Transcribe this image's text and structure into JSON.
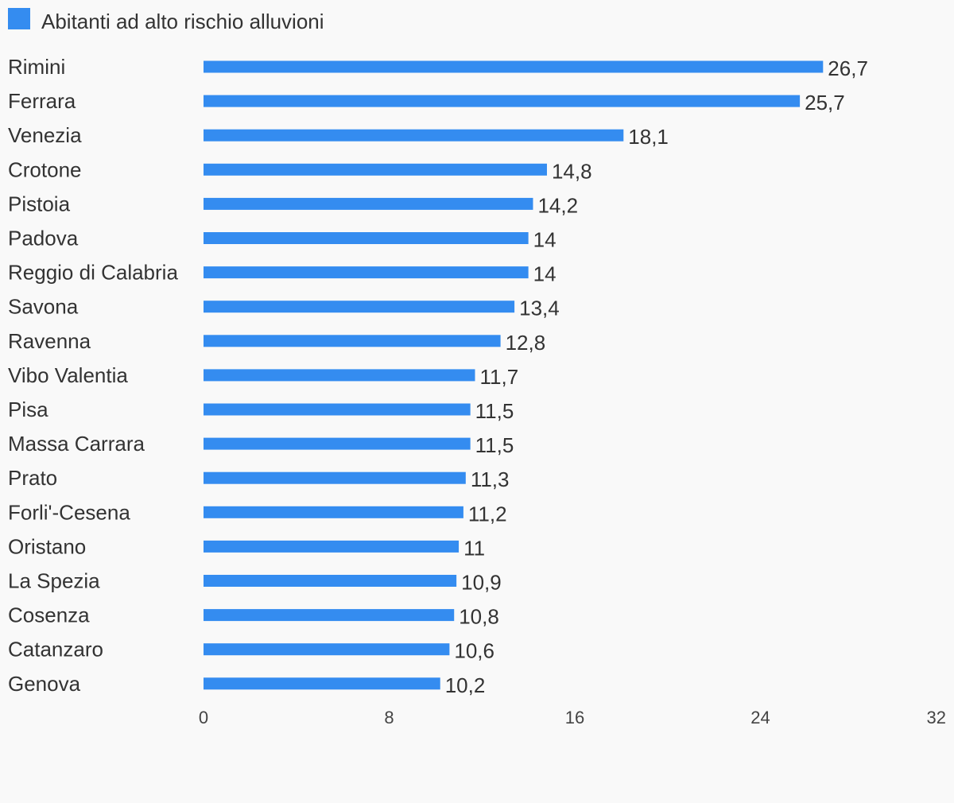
{
  "chart_data": {
    "type": "bar",
    "orientation": "horizontal",
    "categories": [
      "Rimini",
      "Ferrara",
      "Venezia",
      "Crotone",
      "Pistoia",
      "Padova",
      "Reggio di Calabria",
      "Savona",
      "Ravenna",
      "Vibo Valentia",
      "Pisa",
      "Massa Carrara",
      "Prato",
      "Forli'-Cesena",
      "Oristano",
      "La Spezia",
      "Cosenza",
      "Catanzaro",
      "Genova"
    ],
    "series": [
      {
        "name": "Abitanti ad alto rischio alluvioni",
        "color": "#348cf0",
        "values": [
          26.7,
          25.7,
          18.1,
          14.8,
          14.2,
          14,
          14,
          13.4,
          12.8,
          11.7,
          11.5,
          11.5,
          11.3,
          11.2,
          11,
          10.9,
          10.8,
          10.6,
          10.2
        ],
        "value_labels": [
          "26,7",
          "25,7",
          "18,1",
          "14,8",
          "14,2",
          "14",
          "14",
          "13,4",
          "12,8",
          "11,7",
          "11,5",
          "11,5",
          "11,3",
          "11,2",
          "11",
          "10,9",
          "10,8",
          "10,6",
          "10,2"
        ]
      }
    ],
    "x_ticks": [
      "0",
      "8",
      "16",
      "24",
      "32"
    ],
    "xlim": [
      0,
      32
    ],
    "grid": false,
    "legend_position": "top-left",
    "title": "",
    "xlabel": "",
    "ylabel": ""
  }
}
